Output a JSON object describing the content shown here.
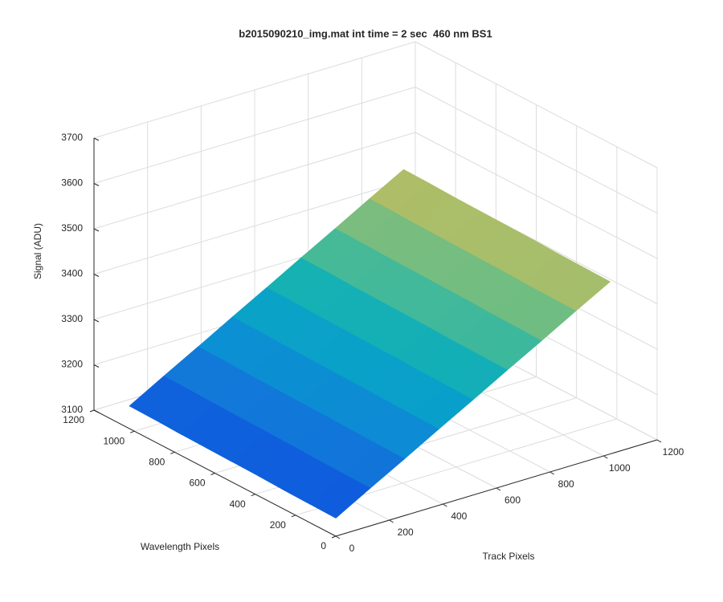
{
  "chart_data": {
    "type": "surface",
    "title": "b2015090210_img.mat int time = 2 sec  460 nm BS1",
    "xlabel": "Track Pixels",
    "ylabel": "Wavelength Pixels",
    "zlabel": "Signal (ADU)",
    "x": [
      0,
      128,
      256,
      384,
      512,
      640,
      768,
      896,
      1024
    ],
    "y": [
      0,
      128,
      256,
      384,
      512,
      640,
      768,
      896,
      1024
    ],
    "z": [
      [
        3140,
        3183,
        3225,
        3268,
        3310,
        3353,
        3395,
        3438,
        3480
      ],
      [
        3141,
        3184,
        3226,
        3269,
        3311,
        3354,
        3396,
        3439,
        3481
      ],
      [
        3142,
        3185,
        3227,
        3270,
        3312,
        3355,
        3397,
        3440,
        3482
      ],
      [
        3144,
        3187,
        3229,
        3272,
        3314,
        3357,
        3399,
        3442,
        3484
      ],
      [
        3145,
        3188,
        3230,
        3273,
        3315,
        3358,
        3400,
        3443,
        3485
      ],
      [
        3146,
        3189,
        3231,
        3274,
        3316,
        3359,
        3401,
        3444,
        3486
      ],
      [
        3147,
        3190,
        3232,
        3275,
        3317,
        3360,
        3402,
        3445,
        3487
      ],
      [
        3149,
        3192,
        3234,
        3277,
        3319,
        3362,
        3404,
        3447,
        3489
      ],
      [
        3150,
        3193,
        3235,
        3278,
        3320,
        3363,
        3405,
        3448,
        3490
      ]
    ],
    "xlim": [
      0,
      1200
    ],
    "ylim": [
      0,
      1200
    ],
    "zlim": [
      3100,
      3700
    ],
    "xticks": [
      0,
      200,
      400,
      600,
      800,
      1000,
      1200
    ],
    "yticks": [
      0,
      200,
      400,
      600,
      800,
      1000,
      1200
    ],
    "zticks": [
      3100,
      3200,
      3300,
      3400,
      3500,
      3600,
      3700
    ],
    "grid": true,
    "colormap": "parula"
  }
}
